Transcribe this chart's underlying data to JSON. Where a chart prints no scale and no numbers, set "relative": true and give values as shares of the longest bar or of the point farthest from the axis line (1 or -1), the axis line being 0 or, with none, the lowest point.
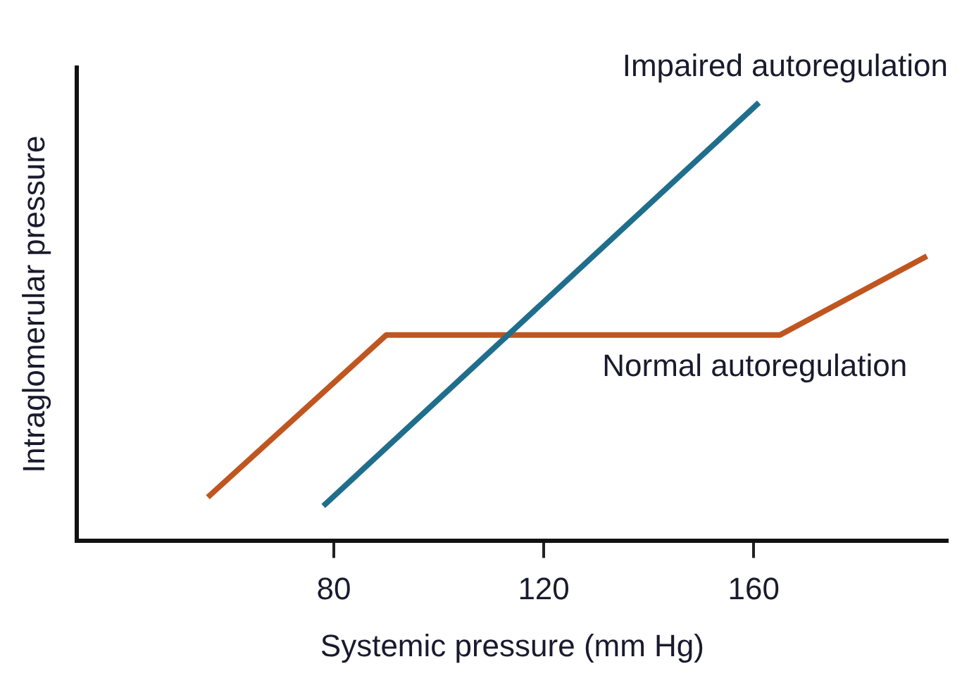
{
  "chart_data": {
    "type": "line",
    "relative": true,
    "xlabel": "Systemic pressure (mm Hg)",
    "ylabel": "Intraglomerular pressure",
    "xlim": [
      31,
      197
    ],
    "xticks": [
      80,
      120,
      160
    ],
    "grid": false,
    "legend": false,
    "marker": "none",
    "line_style": "solid",
    "series": [
      {
        "name": "Impaired autoregulation",
        "color": "#1f6e8c",
        "x": [
          78,
          161
        ],
        "values": [
          0.08,
          1.0
        ]
      },
      {
        "name": "Normal autoregulation",
        "color": "#c0561f",
        "x": [
          56,
          90,
          165,
          193
        ],
        "values": [
          0.1,
          0.47,
          0.47,
          0.65
        ]
      }
    ]
  }
}
